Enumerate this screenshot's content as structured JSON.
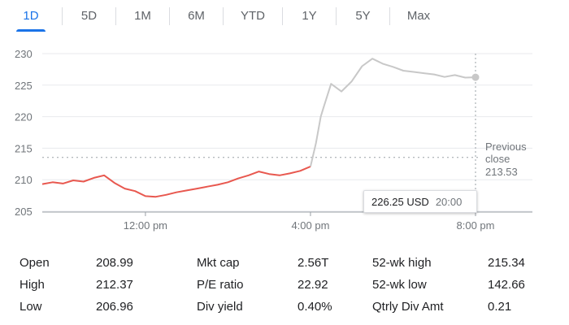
{
  "tabs": [
    {
      "label": "1D",
      "active": true
    },
    {
      "label": "5D",
      "active": false
    },
    {
      "label": "1M",
      "active": false
    },
    {
      "label": "6M",
      "active": false
    },
    {
      "label": "YTD",
      "active": false
    },
    {
      "label": "1Y",
      "active": false
    },
    {
      "label": "5Y",
      "active": false
    },
    {
      "label": "Max",
      "active": false
    }
  ],
  "chart_data": {
    "type": "line",
    "y_ticks": [
      "230",
      "225",
      "220",
      "215",
      "210",
      "205"
    ],
    "ylim": [
      205,
      230
    ],
    "x_ticks": [
      "12:00 pm",
      "4:00 pm",
      "8:00 pm"
    ],
    "grid": true,
    "previous_close": {
      "label_line1": "Previous",
      "label_line2": "close",
      "value": "213.53"
    },
    "colors": {
      "regular_session": "#e8584f",
      "extended_session": "#c8c8c8",
      "grid": "#e8eaed"
    },
    "series": [
      {
        "session": "regular",
        "points": [
          [
            "9:30",
            209.3
          ],
          [
            "9:45",
            209.6
          ],
          [
            "10:00",
            209.4
          ],
          [
            "10:15",
            209.9
          ],
          [
            "10:30",
            209.7
          ],
          [
            "10:45",
            210.3
          ],
          [
            "11:00",
            210.7
          ],
          [
            "11:15",
            209.5
          ],
          [
            "11:30",
            208.6
          ],
          [
            "11:45",
            208.2
          ],
          [
            "12:00",
            207.4
          ],
          [
            "12:15",
            207.3
          ],
          [
            "12:30",
            207.6
          ],
          [
            "12:45",
            208.0
          ],
          [
            "13:00",
            208.3
          ],
          [
            "13:15",
            208.6
          ],
          [
            "13:30",
            208.9
          ],
          [
            "13:45",
            209.2
          ],
          [
            "14:00",
            209.6
          ],
          [
            "14:15",
            210.2
          ],
          [
            "14:30",
            210.7
          ],
          [
            "14:45",
            211.3
          ],
          [
            "15:00",
            210.9
          ],
          [
            "15:15",
            210.7
          ],
          [
            "15:30",
            211.0
          ],
          [
            "15:45",
            211.4
          ],
          [
            "16:00",
            212.1
          ]
        ]
      },
      {
        "session": "after-hours",
        "points": [
          [
            "16:00",
            212.1
          ],
          [
            "16:08",
            215.8
          ],
          [
            "16:15",
            220.0
          ],
          [
            "16:20",
            221.8
          ],
          [
            "16:30",
            225.2
          ],
          [
            "16:45",
            224.0
          ],
          [
            "17:00",
            225.6
          ],
          [
            "17:15",
            228.0
          ],
          [
            "17:30",
            229.2
          ],
          [
            "17:45",
            228.4
          ],
          [
            "18:00",
            227.9
          ],
          [
            "18:15",
            227.3
          ],
          [
            "18:30",
            227.1
          ],
          [
            "18:45",
            226.9
          ],
          [
            "19:00",
            226.7
          ],
          [
            "19:15",
            226.3
          ],
          [
            "19:30",
            226.6
          ],
          [
            "19:45",
            226.2
          ],
          [
            "20:00",
            226.25
          ]
        ]
      }
    ]
  },
  "tooltip": {
    "price": "226.25 USD",
    "time": "20:00"
  },
  "stats": [
    [
      "Open",
      "208.99",
      "Mkt cap",
      "2.56T",
      "52-wk high",
      "215.34"
    ],
    [
      "High",
      "212.37",
      "P/E ratio",
      "22.92",
      "52-wk low",
      "142.66"
    ],
    [
      "Low",
      "206.96",
      "Div yield",
      "0.40%",
      "Qtrly Div Amt",
      "0.21"
    ]
  ]
}
